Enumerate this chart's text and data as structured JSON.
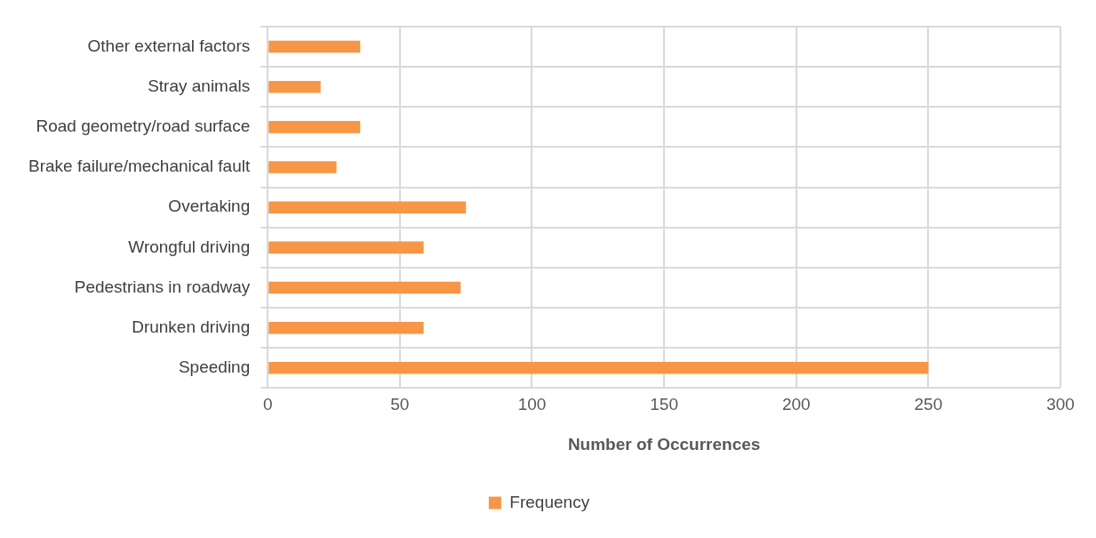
{
  "chart_data": {
    "type": "bar",
    "orientation": "horizontal",
    "xlabel": "Number of Occurrences",
    "categories": [
      "Other external factors",
      "Stray animals",
      "Road geometry/road surface",
      "Brake failure/mechanical fault",
      "Overtaking",
      "Wrongful driving",
      "Pedestrians in roadway",
      "Drunken driving",
      "Speeding"
    ],
    "series": [
      {
        "name": "Frequency",
        "color": "#f79646",
        "values": [
          35,
          20,
          35,
          26,
          75,
          59,
          73,
          59,
          250
        ]
      }
    ],
    "xlim": [
      0,
      300
    ],
    "xticks": [
      0,
      50,
      100,
      150,
      200,
      250,
      300
    ],
    "grid": true,
    "legend": "bottom"
  }
}
